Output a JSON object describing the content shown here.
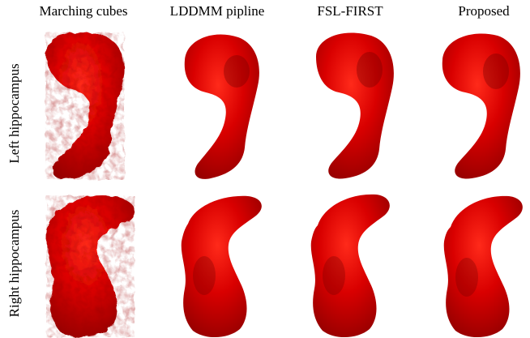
{
  "columns": [
    "Marching cubes",
    "LDDMM pipline",
    "FSL-FIRST",
    "Proposed"
  ],
  "rows": [
    "Left hippocampus",
    "Right hippocampus"
  ],
  "render_color": "#d90000",
  "shadow_color": "#7a0000",
  "highlight_color": "#ff2a1a"
}
